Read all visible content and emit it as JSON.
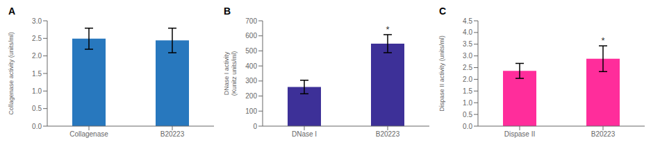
{
  "chart_data": [
    {
      "type": "bar",
      "title": "A",
      "categories": [
        "Collagenase",
        "B20223"
      ],
      "values": [
        2.49,
        2.44
      ],
      "errors": [
        0.3,
        0.35
      ],
      "color": "#2878BE",
      "ylabel": "Collagenase activity (units/ml)",
      "ylim": [
        0,
        3.0
      ],
      "yticks": [
        {
          "value": 0,
          "label": "0.0"
        },
        0.5,
        {
          "value": 1,
          "label": "1.0"
        },
        1.5,
        {
          "value": 2,
          "label": "2.0"
        },
        2.5,
        {
          "value": 3,
          "label": "3.0"
        }
      ],
      "grid": false
    },
    {
      "type": "bar",
      "title": "B",
      "categories": [
        "DNase I",
        "B20223"
      ],
      "values": [
        260,
        548
      ],
      "errors": [
        45,
        60
      ],
      "color": "#3D3098",
      "ylabel": "DNase I activity\n(Kunitz units/ml)",
      "ylim": [
        0,
        700
      ],
      "yticks": [
        0,
        100,
        200,
        300,
        400,
        500,
        600,
        700
      ],
      "annotations": [
        {
          "x": "B20223",
          "text": "*"
        }
      ],
      "grid": false
    },
    {
      "type": "bar",
      "title": "C",
      "categories": [
        "Dispase II",
        "B20223"
      ],
      "values": [
        2.36,
        2.88
      ],
      "errors": [
        0.32,
        0.55
      ],
      "color": "#FF2D9B",
      "ylabel": "Dispase II activity (units/ml)",
      "ylim": [
        0,
        4.5
      ],
      "yticks": [
        {
          "value": 0,
          "label": "0.0"
        },
        0.5,
        {
          "value": 1,
          "label": "1.0"
        },
        1.5,
        {
          "value": 2,
          "label": "2.0"
        },
        2.5,
        {
          "value": 3,
          "label": "3.0"
        },
        3.5,
        {
          "value": 4,
          "label": "4.0"
        },
        4.5
      ],
      "annotations": [
        {
          "x": "B20223",
          "text": "*"
        }
      ],
      "grid": false
    }
  ]
}
